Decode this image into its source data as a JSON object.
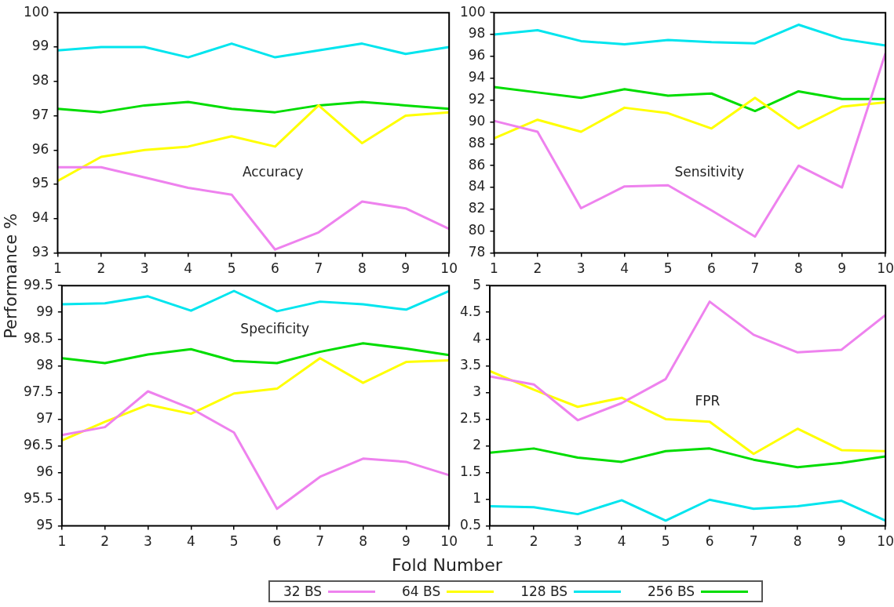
{
  "chart_data": [
    {
      "type": "line",
      "ylabel": "Performance %",
      "x": [
        1,
        2,
        3,
        4,
        5,
        6,
        7,
        8,
        9,
        10
      ],
      "xlim": [
        1,
        10
      ],
      "xticks": [
        1,
        2,
        3,
        4,
        5,
        6,
        7,
        8,
        9,
        10
      ],
      "ylim": [
        93,
        100
      ],
      "yticks": [
        93,
        94,
        95,
        96,
        97,
        98,
        99,
        100
      ],
      "legend": "bottom",
      "grid": false,
      "marker": "none",
      "line_style": "solid",
      "annotations": [
        "Accuracy"
      ],
      "series": [
        {
          "name": "32 BS",
          "color": "#ee82ee",
          "values": [
            95.5,
            95.5,
            95.2,
            94.9,
            94.7,
            93.1,
            93.6,
            94.5,
            94.3,
            93.7
          ]
        },
        {
          "name": "64 BS",
          "color": "#ffff00",
          "values": [
            95.1,
            95.8,
            96.0,
            96.1,
            96.4,
            96.1,
            97.3,
            96.2,
            97.0,
            97.1
          ]
        },
        {
          "name": "128 BS",
          "color": "#00e5ee",
          "values": [
            98.9,
            99.0,
            99.0,
            98.7,
            99.1,
            98.7,
            98.9,
            99.1,
            98.8,
            99.0
          ]
        },
        {
          "name": "256 BS",
          "color": "#00dd00",
          "values": [
            97.2,
            97.1,
            97.3,
            97.4,
            97.2,
            97.1,
            97.3,
            97.4,
            97.3,
            97.2
          ]
        }
      ]
    },
    {
      "type": "line",
      "x": [
        1,
        2,
        3,
        4,
        5,
        6,
        7,
        8,
        9,
        10
      ],
      "xlim": [
        1,
        10
      ],
      "xticks": [
        1,
        2,
        3,
        4,
        5,
        6,
        7,
        8,
        9,
        10
      ],
      "ylim": [
        78,
        100
      ],
      "yticks": [
        78,
        80,
        82,
        84,
        86,
        88,
        90,
        92,
        94,
        96,
        98,
        100
      ],
      "legend": "bottom",
      "grid": false,
      "marker": "none",
      "line_style": "solid",
      "annotations": [
        "Sensitivity"
      ],
      "series": [
        {
          "name": "32 BS",
          "color": "#ee82ee",
          "values": [
            90.1,
            89.1,
            82.1,
            84.1,
            84.2,
            81.9,
            79.5,
            86.0,
            84.0,
            96.3
          ]
        },
        {
          "name": "64 BS",
          "color": "#ffff00",
          "values": [
            88.5,
            90.2,
            89.1,
            91.3,
            90.8,
            89.4,
            92.2,
            89.4,
            91.4,
            91.8
          ]
        },
        {
          "name": "128 BS",
          "color": "#00e5ee",
          "values": [
            98.0,
            98.4,
            97.4,
            97.1,
            97.5,
            97.3,
            97.2,
            98.9,
            97.6,
            97.0
          ]
        },
        {
          "name": "256 BS",
          "color": "#00dd00",
          "values": [
            93.2,
            92.7,
            92.2,
            93.0,
            92.4,
            92.6,
            91.0,
            92.8,
            92.1,
            92.1
          ]
        }
      ]
    },
    {
      "type": "line",
      "xlabel": "Fold Number",
      "x": [
        1,
        2,
        3,
        4,
        5,
        6,
        7,
        8,
        9,
        10
      ],
      "xlim": [
        1,
        10
      ],
      "xticks": [
        1,
        2,
        3,
        4,
        5,
        6,
        7,
        8,
        9,
        10
      ],
      "ylim": [
        95,
        99.5
      ],
      "yticks": [
        95,
        95.5,
        96,
        96.5,
        97,
        97.5,
        98,
        98.5,
        99,
        99.5
      ],
      "legend": "bottom",
      "grid": false,
      "marker": "none",
      "line_style": "solid",
      "annotations": [
        "Specificity"
      ],
      "series": [
        {
          "name": "32 BS",
          "color": "#ee82ee",
          "values": [
            96.7,
            96.85,
            97.52,
            97.2,
            96.75,
            95.32,
            95.92,
            96.26,
            96.2,
            95.95
          ]
        },
        {
          "name": "64 BS",
          "color": "#ffff00",
          "values": [
            96.6,
            96.95,
            97.27,
            97.1,
            97.48,
            97.57,
            98.14,
            97.68,
            98.07,
            98.1
          ]
        },
        {
          "name": "128 BS",
          "color": "#00e5ee",
          "values": [
            99.15,
            99.17,
            99.3,
            99.03,
            99.4,
            99.02,
            99.2,
            99.15,
            99.05,
            99.4
          ]
        },
        {
          "name": "256 BS",
          "color": "#00dd00",
          "values": [
            98.14,
            98.05,
            98.21,
            98.31,
            98.09,
            98.05,
            98.26,
            98.42,
            98.32,
            98.2
          ]
        }
      ]
    },
    {
      "type": "line",
      "x": [
        1,
        2,
        3,
        4,
        5,
        6,
        7,
        8,
        9,
        10
      ],
      "xlim": [
        1,
        10
      ],
      "xticks": [
        1,
        2,
        3,
        4,
        5,
        6,
        7,
        8,
        9,
        10
      ],
      "ylim": [
        0.5,
        5
      ],
      "yticks": [
        0.5,
        1,
        1.5,
        2,
        2.5,
        3,
        3.5,
        4,
        4.5,
        5
      ],
      "legend": "bottom",
      "grid": false,
      "marker": "none",
      "line_style": "solid",
      "annotations": [
        "FPR"
      ],
      "series": [
        {
          "name": "32 BS",
          "color": "#ee82ee",
          "values": [
            3.3,
            3.15,
            2.48,
            2.8,
            3.25,
            4.7,
            4.08,
            3.75,
            3.8,
            4.45
          ]
        },
        {
          "name": "64 BS",
          "color": "#ffff00",
          "values": [
            3.4,
            3.05,
            2.73,
            2.9,
            2.5,
            2.45,
            1.85,
            2.32,
            1.92,
            1.9
          ]
        },
        {
          "name": "128 BS",
          "color": "#00e5ee",
          "values": [
            0.87,
            0.85,
            0.72,
            0.98,
            0.6,
            0.99,
            0.82,
            0.87,
            0.97,
            0.6
          ]
        },
        {
          "name": "256 BS",
          "color": "#00dd00",
          "values": [
            1.87,
            1.95,
            1.78,
            1.7,
            1.9,
            1.95,
            1.74,
            1.6,
            1.68,
            1.8
          ]
        }
      ]
    }
  ]
}
